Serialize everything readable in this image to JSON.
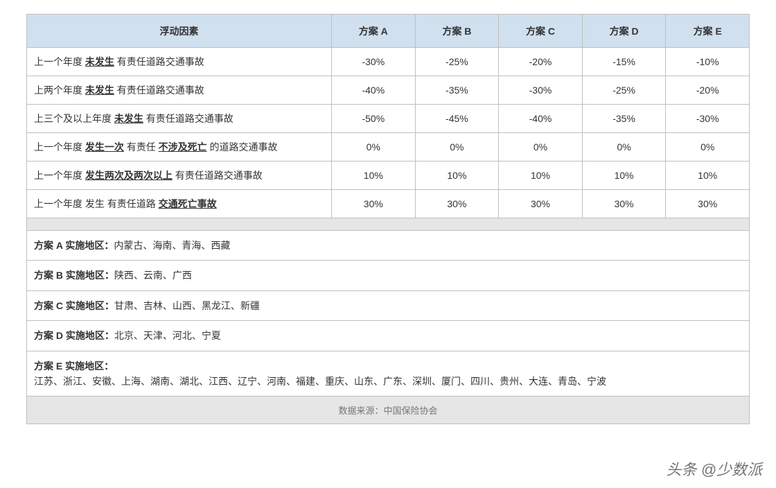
{
  "table": {
    "header": {
      "factor": "浮动因素",
      "plans": [
        "方案 A",
        "方案 B",
        "方案 C",
        "方案 D",
        "方案 E"
      ]
    },
    "rows": [
      {
        "factor_parts": [
          {
            "t": "上一个年度 ",
            "s": "n"
          },
          {
            "t": "未发生",
            "s": "bu"
          },
          {
            "t": " 有责任道路交通事故",
            "s": "n"
          }
        ],
        "vals": [
          "-30%",
          "-25%",
          "-20%",
          "-15%",
          "-10%"
        ]
      },
      {
        "factor_parts": [
          {
            "t": "上两个年度 ",
            "s": "n"
          },
          {
            "t": "未发生",
            "s": "bu"
          },
          {
            "t": " 有责任道路交通事故",
            "s": "n"
          }
        ],
        "vals": [
          "-40%",
          "-35%",
          "-30%",
          "-25%",
          "-20%"
        ]
      },
      {
        "factor_parts": [
          {
            "t": "上三个及以上年度 ",
            "s": "n"
          },
          {
            "t": "未发生",
            "s": "bu"
          },
          {
            "t": " 有责任道路交通事故",
            "s": "n"
          }
        ],
        "vals": [
          "-50%",
          "-45%",
          "-40%",
          "-35%",
          "-30%"
        ]
      },
      {
        "factor_parts": [
          {
            "t": "上一个年度 ",
            "s": "n"
          },
          {
            "t": "发生一次",
            "s": "bu"
          },
          {
            "t": " 有责任 ",
            "s": "n"
          },
          {
            "t": "不涉及死亡",
            "s": "bu"
          },
          {
            "t": " 的道路交通事故",
            "s": "n"
          }
        ],
        "vals": [
          "0%",
          "0%",
          "0%",
          "0%",
          "0%"
        ]
      },
      {
        "factor_parts": [
          {
            "t": "上一个年度 ",
            "s": "n"
          },
          {
            "t": "发生两次及两次以上",
            "s": "bu"
          },
          {
            "t": " 有责任道路交通事故",
            "s": "n"
          }
        ],
        "vals": [
          "10%",
          "10%",
          "10%",
          "10%",
          "10%"
        ]
      },
      {
        "factor_parts": [
          {
            "t": "上一个年度 发生 有责任道路 ",
            "s": "n"
          },
          {
            "t": "交通死亡事故",
            "s": "bu"
          }
        ],
        "vals": [
          "30%",
          "30%",
          "30%",
          "30%",
          "30%"
        ]
      }
    ],
    "regions": [
      {
        "label": "方案 A 实施地区：",
        "text": "内蒙古、海南、青海、西藏",
        "inline": true
      },
      {
        "label": "方案 B 实施地区：",
        "text": "陕西、云南、广西",
        "inline": true
      },
      {
        "label": "方案 C 实施地区：",
        "text": "甘肃、吉林、山西、黑龙江、新疆",
        "inline": true
      },
      {
        "label": "方案 D 实施地区：",
        "text": "北京、天津、河北、宁夏",
        "inline": true
      },
      {
        "label": "方案 E 实施地区：",
        "text": "江苏、浙江、安徽、上海、湖南、湖北、江西、辽宁、河南、福建、重庆、山东、广东、深圳、厦门、四川、贵州、大连、青岛、宁波",
        "inline": false
      }
    ],
    "source": "数据来源：中国保险协会"
  },
  "colors": {
    "header_bg": "#d0e0ef",
    "border": "#bfbfbf",
    "spacer_bg": "#e6e6e6",
    "text": "#333333",
    "source_text": "#777777"
  },
  "watermark": "头条 @少数派"
}
